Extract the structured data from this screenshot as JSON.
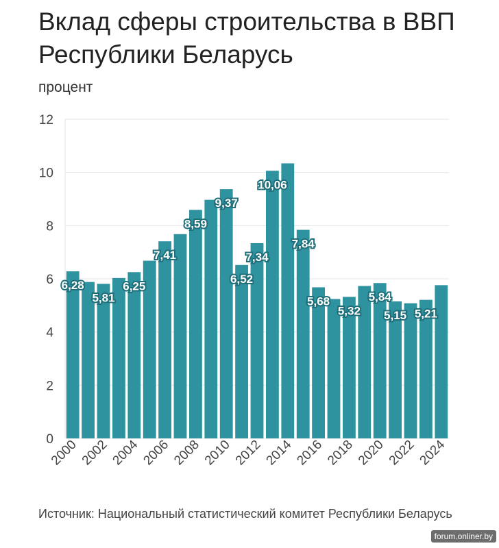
{
  "chart_data": {
    "type": "bar",
    "title": "Вклад сферы строительства в ВВП Республики Беларусь",
    "ylabel": "процент",
    "xlabel": "",
    "ylim": [
      0,
      12
    ],
    "yticks": [
      0,
      2,
      4,
      6,
      8,
      10,
      12
    ],
    "grid": true,
    "color": "#2e929f",
    "categories": [
      "2000",
      "2001",
      "2002",
      "2003",
      "2004",
      "2005",
      "2006",
      "2007",
      "2008",
      "2009",
      "2010",
      "2011",
      "2012",
      "2013",
      "2014",
      "2015",
      "2016",
      "2017",
      "2018",
      "2019",
      "2020",
      "2021",
      "2022",
      "2023",
      "2024"
    ],
    "values": [
      6.28,
      5.88,
      5.81,
      6.03,
      6.25,
      6.68,
      7.41,
      7.68,
      8.59,
      8.97,
      9.37,
      6.52,
      7.34,
      10.06,
      10.34,
      7.84,
      5.68,
      5.24,
      5.32,
      5.73,
      5.84,
      5.15,
      5.08,
      5.21,
      5.76
    ],
    "labels": [
      "6,28",
      "",
      "5,81",
      "",
      "6,25",
      "",
      "7,41",
      "",
      "8,59",
      "",
      "9,37",
      "6,52",
      "7,34",
      "10,06",
      "",
      "7,84",
      "5,68",
      "",
      "5,32",
      "",
      "5,84",
      "5,15",
      "",
      "5,21",
      ""
    ],
    "xtick_labels": [
      "2000",
      "2002",
      "2004",
      "2006",
      "2008",
      "2010",
      "2012",
      "2014",
      "2016",
      "2018",
      "2020",
      "2022",
      "2024"
    ],
    "source": "Источник: Национальный статистический комитет Республики Беларусь"
  },
  "watermark": "forum.onliner.by"
}
